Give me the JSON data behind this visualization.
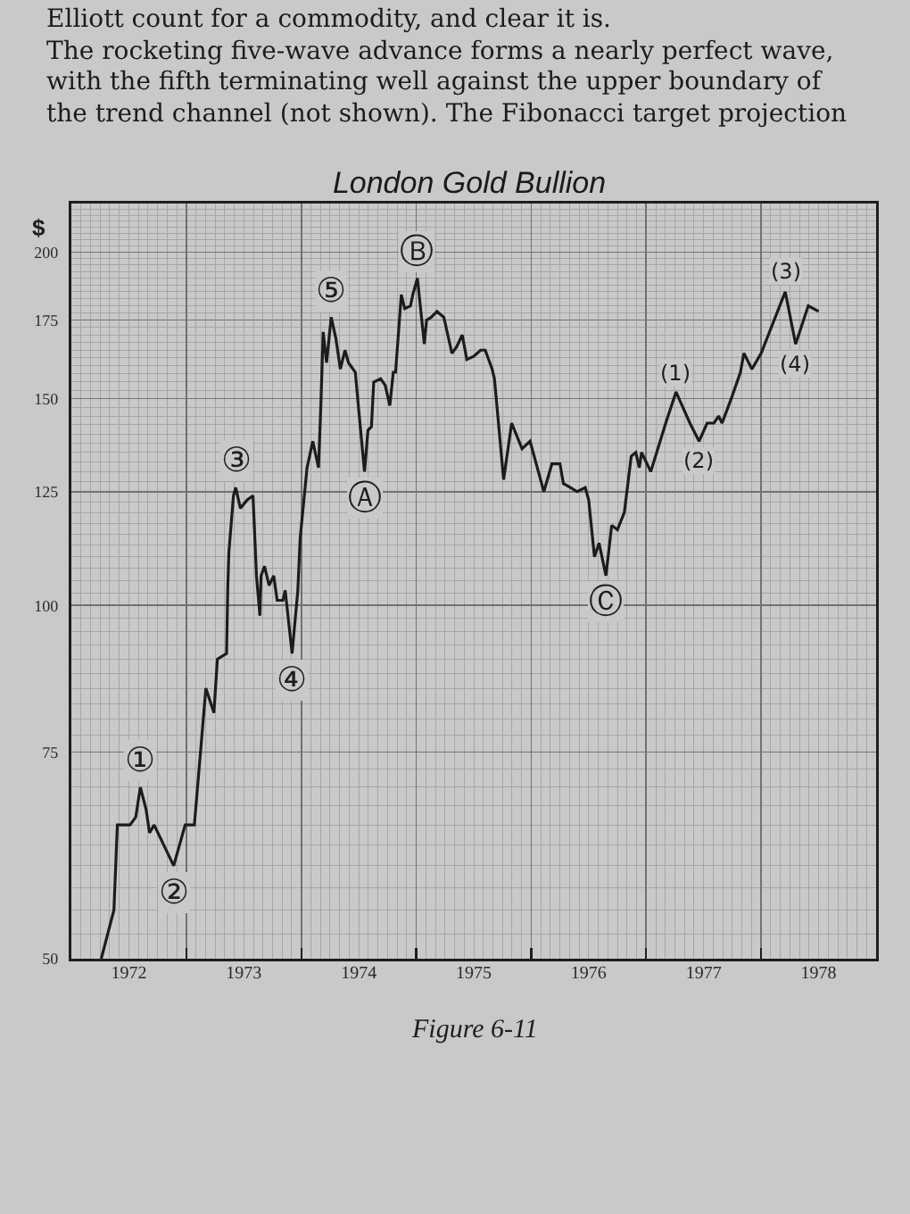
{
  "chart_data": {
    "type": "line",
    "title": "London Gold Bullion",
    "ylabel": "$",
    "x": [
      1972.26,
      1972.37,
      1972.4,
      1972.51,
      1972.56,
      1972.6,
      1972.65,
      1972.68,
      1972.72,
      1972.89,
      1972.99,
      1973.07,
      1973.17,
      1973.24,
      1973.27,
      1973.35,
      1973.36,
      1973.37,
      1973.41,
      1973.43,
      1973.47,
      1973.53,
      1973.58,
      1973.61,
      1973.64,
      1973.65,
      1973.68,
      1973.72,
      1973.76,
      1973.79,
      1973.84,
      1973.86,
      1973.92,
      1973.97,
      1973.99,
      1974.05,
      1974.1,
      1974.15,
      1974.17,
      1974.19,
      1974.22,
      1974.26,
      1974.3,
      1974.34,
      1974.38,
      1974.41,
      1974.47,
      1974.51,
      1974.55,
      1974.58,
      1974.61,
      1974.63,
      1974.69,
      1974.73,
      1974.77,
      1974.8,
      1974.82,
      1974.87,
      1974.9,
      1974.95,
      1974.97,
      1975.01,
      1975.07,
      1975.09,
      1975.13,
      1975.18,
      1975.24,
      1975.31,
      1975.35,
      1975.4,
      1975.44,
      1975.5,
      1975.56,
      1975.6,
      1975.66,
      1975.68,
      1975.76,
      1975.83,
      1975.92,
      1975.99,
      1976.11,
      1976.18,
      1976.25,
      1976.28,
      1976.34,
      1976.4,
      1976.47,
      1976.5,
      1976.55,
      1976.59,
      1976.65,
      1976.7,
      1976.75,
      1976.81,
      1976.87,
      1976.91,
      1976.94,
      1976.96,
      1977.04,
      1977.17,
      1977.26,
      1977.38,
      1977.46,
      1977.53,
      1977.59,
      1977.63,
      1977.66,
      1977.74,
      1977.82,
      1977.85,
      1977.92,
      1978.0,
      1978.21,
      1978.3,
      1978.41,
      1978.5
    ],
    "series": [
      {
        "color": "#1c1c1c",
        "values": [
          50,
          55,
          65,
          65,
          66,
          70,
          67,
          64,
          65,
          60,
          65,
          65,
          85,
          81,
          90,
          91,
          103,
          111,
          124,
          126,
          121,
          123,
          124,
          106,
          98,
          106,
          108,
          104,
          106,
          101,
          101,
          103,
          91,
          103,
          114,
          131,
          138,
          131,
          148,
          171,
          161,
          176,
          169,
          159,
          165,
          161,
          158,
          143,
          130,
          141,
          142,
          155,
          156,
          154,
          148,
          158,
          158,
          184,
          179,
          180,
          184,
          190,
          167,
          175,
          176,
          178,
          176,
          164,
          166,
          170,
          162,
          163,
          165,
          165,
          159,
          156,
          128,
          143,
          136,
          138,
          125,
          132,
          132,
          127,
          126,
          125,
          126,
          123,
          110,
          113,
          106,
          117,
          116,
          120,
          134,
          135,
          131,
          135,
          130,
          143,
          152,
          143,
          138,
          143,
          143,
          145,
          143,
          150,
          158,
          164,
          159,
          164,
          185,
          167,
          180,
          178
        ]
      }
    ],
    "xlim": [
      1972,
      1979
    ],
    "xticks": [
      {
        "value": 1972.5,
        "label": "1972"
      },
      {
        "value": 1973.5,
        "label": "1973"
      },
      {
        "value": 1974.5,
        "label": "1974"
      },
      {
        "value": 1975.5,
        "label": "1975"
      },
      {
        "value": 1976.5,
        "label": "1976"
      },
      {
        "value": 1977.5,
        "label": "1977"
      },
      {
        "value": 1978.5,
        "label": "1978"
      },
      {
        "value": 1973,
        "label": null
      },
      {
        "value": 1974,
        "label": null
      },
      {
        "value": 1975,
        "label": null
      },
      {
        "value": 1976,
        "label": null
      },
      {
        "value": 1977,
        "label": null
      },
      {
        "value": 1978,
        "label": null
      }
    ],
    "ylim": [
      50,
      220
    ],
    "yticks": [
      50,
      75,
      100,
      125,
      150,
      175,
      200
    ],
    "log": "y",
    "grid": true,
    "annotations": [
      "Elliott count for a commodity, and clear it is.",
      "The rocketing five-wave advance forms a nearly perfect wave,",
      "with the fifth terminating well against the upper boundary of",
      "the trend channel (not shown). The Fibonacci target projection",
      {
        "text": "①",
        "x": 1972.6,
        "y": 70
      },
      {
        "text": "②",
        "x": 1972.89,
        "y": 60
      },
      {
        "text": "③",
        "x": 1973.43,
        "y": 126
      },
      {
        "text": "④",
        "x": 1973.92,
        "y": 91
      },
      {
        "text": "⑤",
        "x": 1974.26,
        "y": 176
      },
      {
        "text": "Ⓐ",
        "x": 1974.55,
        "y": 130
      },
      {
        "text": "Ⓑ",
        "x": 1975.01,
        "y": 190
      },
      {
        "text": "Ⓒ",
        "x": 1976.65,
        "y": 106
      },
      {
        "text": "(1)",
        "x": 1977.26,
        "y": 152
      },
      {
        "text": "(2)",
        "x": 1977.46,
        "y": 138
      },
      {
        "text": "(3)",
        "x": 1978.21,
        "y": 185
      },
      {
        "text": "(4)",
        "x": 1978.3,
        "y": 167
      },
      "Figure 6-11"
    ]
  }
}
